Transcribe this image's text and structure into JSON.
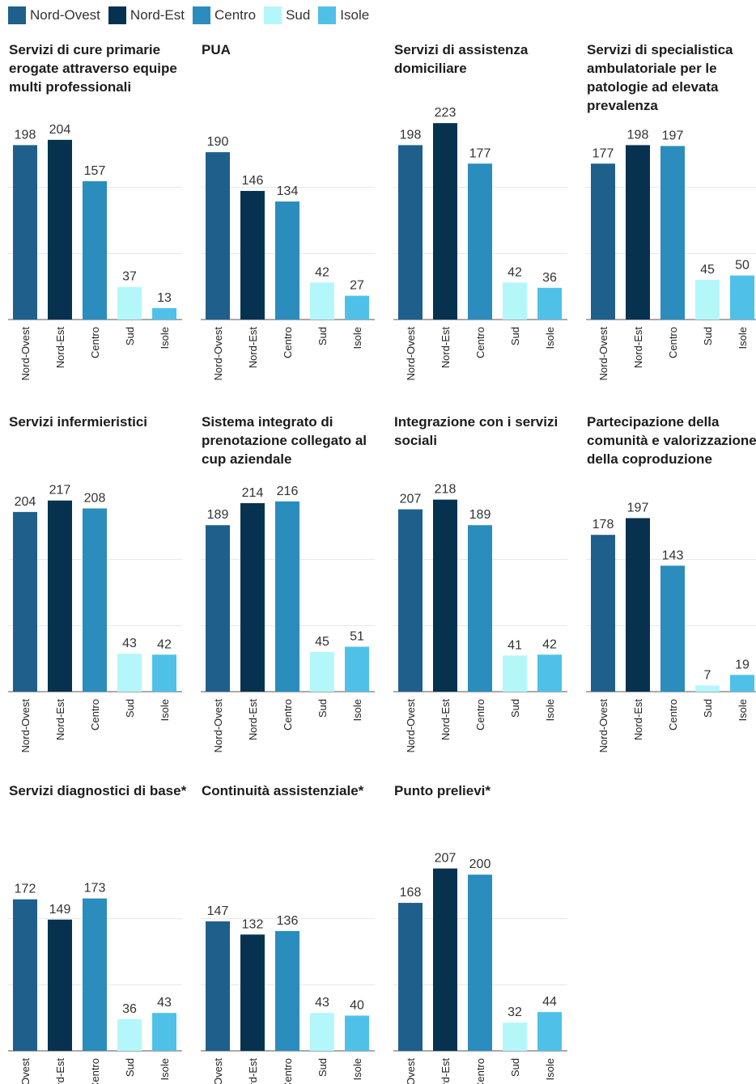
{
  "legend": [
    {
      "label": "Nord-Ovest",
      "color": "#1f5f8b"
    },
    {
      "label": "Nord-Est",
      "color": "#06324f"
    },
    {
      "label": "Centro",
      "color": "#2b8cbe"
    },
    {
      "label": "Sud",
      "color": "#b3f7fb"
    },
    {
      "label": "Isole",
      "color": "#4fc1e9"
    }
  ],
  "chart_data": [
    {
      "type": "bar",
      "title": "Servizi di cure primarie erogate attraverso equipe multi professionali",
      "categories": [
        "Nord-Ovest",
        "Nord-Est",
        "Centro",
        "Sud",
        "Isole"
      ],
      "values": [
        198,
        204,
        157,
        37,
        13
      ],
      "ylim": [
        0,
        225
      ],
      "grid": true
    },
    {
      "type": "bar",
      "title": "PUA",
      "categories": [
        "Nord-Ovest",
        "Nord-Est",
        "Centro",
        "Sud",
        "Isole"
      ],
      "values": [
        190,
        146,
        134,
        42,
        27
      ],
      "ylim": [
        0,
        225
      ],
      "grid": true
    },
    {
      "type": "bar",
      "title": "Servizi di assistenza domiciliare",
      "categories": [
        "Nord-Ovest",
        "Nord-Est",
        "Centro",
        "Sud",
        "Isole"
      ],
      "values": [
        198,
        223,
        177,
        42,
        36
      ],
      "ylim": [
        0,
        225
      ],
      "grid": true
    },
    {
      "type": "bar",
      "title": "Servizi di specialistica ambulatoriale per le patologie ad elevata prevalenza",
      "categories": [
        "Nord-Ovest",
        "Nord-Est",
        "Centro",
        "Sud",
        "Isole"
      ],
      "values": [
        177,
        198,
        197,
        45,
        50
      ],
      "ylim": [
        0,
        225
      ],
      "grid": true
    },
    {
      "type": "bar",
      "title": "Servizi infermieristici",
      "categories": [
        "Nord-Ovest",
        "Nord-Est",
        "Centro",
        "Sud",
        "Isole"
      ],
      "values": [
        204,
        217,
        208,
        43,
        42
      ],
      "ylim": [
        0,
        225
      ],
      "grid": true
    },
    {
      "type": "bar",
      "title": "Sistema integrato di prenotazione collegato al cup aziendale",
      "categories": [
        "Nord-Ovest",
        "Nord-Est",
        "Centro",
        "Sud",
        "Isole"
      ],
      "values": [
        189,
        214,
        216,
        45,
        51
      ],
      "ylim": [
        0,
        225
      ],
      "grid": true
    },
    {
      "type": "bar",
      "title": "Integrazione con i servizi sociali",
      "categories": [
        "Nord-Ovest",
        "Nord-Est",
        "Centro",
        "Sud",
        "Isole"
      ],
      "values": [
        207,
        218,
        189,
        41,
        42
      ],
      "ylim": [
        0,
        225
      ],
      "grid": true
    },
    {
      "type": "bar",
      "title": "Partecipazione della comunità e valorizzazione della coproduzione",
      "categories": [
        "Nord-Ovest",
        "Nord-Est",
        "Centro",
        "Sud",
        "Isole"
      ],
      "values": [
        178,
        197,
        143,
        7,
        19
      ],
      "ylim": [
        0,
        225
      ],
      "grid": true
    },
    {
      "type": "bar",
      "title": "Servizi diagnostici di base*",
      "categories": [
        "Nord-Ovest",
        "Nord-Est",
        "Centro",
        "Sud",
        "Isole"
      ],
      "values": [
        172,
        149,
        173,
        36,
        43
      ],
      "ylim": [
        0,
        225
      ],
      "grid": true
    },
    {
      "type": "bar",
      "title": "Continuità assistenziale*",
      "categories": [
        "Nord-Ovest",
        "Nord-Est",
        "Centro",
        "Sud",
        "Isole"
      ],
      "values": [
        147,
        132,
        136,
        43,
        40
      ],
      "ylim": [
        0,
        225
      ],
      "grid": true
    },
    {
      "type": "bar",
      "title": "Punto prelievi*",
      "categories": [
        "Nord-Ovest",
        "Nord-Est",
        "Centro",
        "Sud",
        "Isole"
      ],
      "values": [
        168,
        207,
        200,
        32,
        44
      ],
      "ylim": [
        0,
        225
      ],
      "grid": true
    }
  ]
}
